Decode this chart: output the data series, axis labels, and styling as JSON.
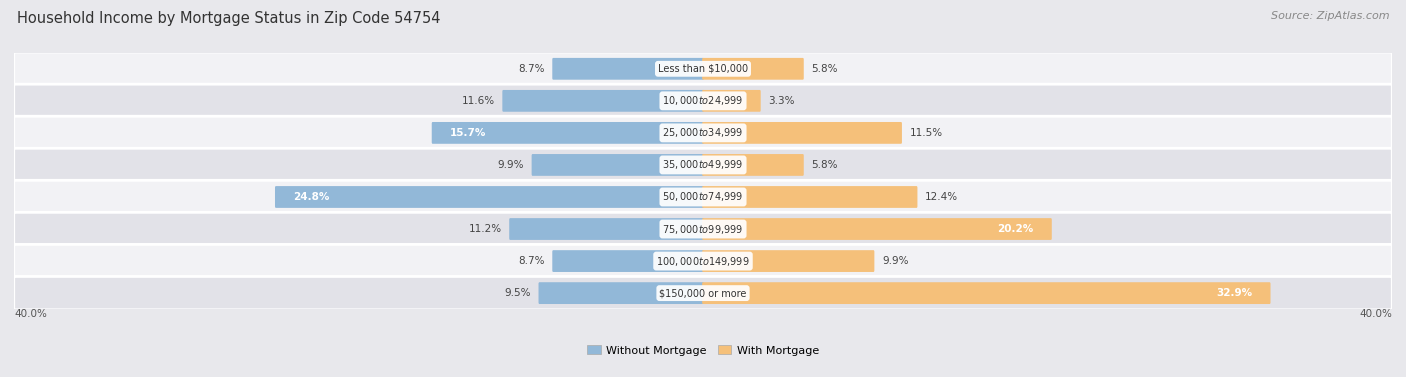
{
  "title": "Household Income by Mortgage Status in Zip Code 54754",
  "source": "Source: ZipAtlas.com",
  "categories": [
    "Less than $10,000",
    "$10,000 to $24,999",
    "$25,000 to $34,999",
    "$35,000 to $49,999",
    "$50,000 to $74,999",
    "$75,000 to $99,999",
    "$100,000 to $149,999",
    "$150,000 or more"
  ],
  "without_mortgage": [
    8.7,
    11.6,
    15.7,
    9.9,
    24.8,
    11.2,
    8.7,
    9.5
  ],
  "with_mortgage": [
    5.8,
    3.3,
    11.5,
    5.8,
    12.4,
    20.2,
    9.9,
    32.9
  ],
  "color_without": "#92b8d8",
  "color_without_dark": "#5a8fbf",
  "color_with": "#f5c07a",
  "color_with_dark": "#e8993a",
  "max_val": 40.0,
  "bg_color": "#e8e8ec",
  "row_colors": [
    "#f2f2f5",
    "#e2e2e8"
  ],
  "legend_label_without": "Without Mortgage",
  "legend_label_with": "With Mortgage",
  "bar_height": 0.58,
  "label_fontsize": 7.5,
  "title_fontsize": 10.5,
  "source_fontsize": 8.0
}
